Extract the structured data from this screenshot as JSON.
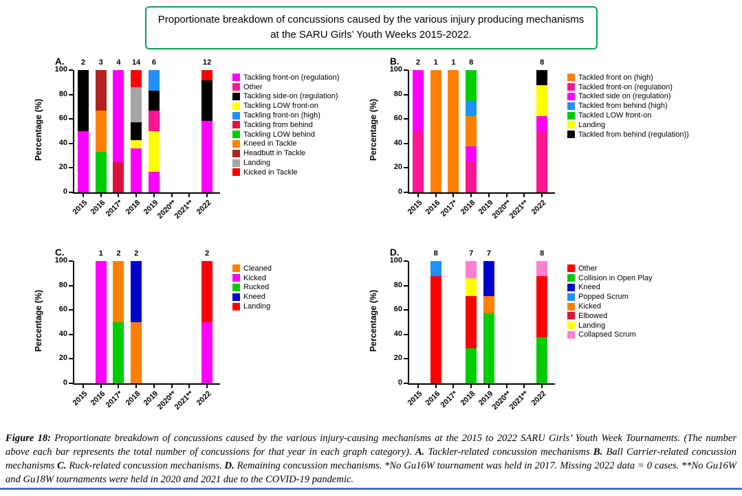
{
  "title_box": {
    "line1": "Proportionate breakdown of concussions caused by the various injury producing mechanisms",
    "line2": "at the SARU Girls’ Youth Weeks 2015-2022.",
    "border_color": "#00A550"
  },
  "divider_color": "#4472C4",
  "chart_data": [
    {
      "id": "A",
      "type": "stacked-bar",
      "panel_label": "A.",
      "ylabel": "Percentage (%)",
      "ylim": [
        0,
        100
      ],
      "yticks": [
        0,
        20,
        40,
        60,
        80,
        100
      ],
      "categories": [
        "2015",
        "2016",
        "2017*",
        "2018",
        "2019",
        "2020**",
        "2021**",
        "2022"
      ],
      "counts": [
        "2",
        "3",
        "4",
        "14",
        "6",
        "",
        "",
        "12"
      ],
      "legend": [
        {
          "label": "Tackling front-on (regulation)",
          "color": "#FF00FF"
        },
        {
          "label": "Other",
          "color": "#FF1493"
        },
        {
          "label": "Tackling side-on (regulation)",
          "color": "#000000"
        },
        {
          "label": "Tackling LOW front-on",
          "color": "#FFFF00"
        },
        {
          "label": "Tackling front-on (high)",
          "color": "#1E90FF"
        },
        {
          "label": "Tackling from behind",
          "color": "#DC143C"
        },
        {
          "label": "Tackling LOW behind",
          "color": "#00CC00"
        },
        {
          "label": "Kneed in Tackle",
          "color": "#FF8000"
        },
        {
          "label": "Headbutt in Tackle",
          "color": "#B22222"
        },
        {
          "label": "Landing",
          "color": "#A5A5A5"
        },
        {
          "label": "Kicked in Tackle",
          "color": "#FF0000"
        }
      ],
      "bars": {
        "2015": [
          {
            "label": "Tackling front-on (regulation)",
            "pct": 50
          },
          {
            "label": "Tackling side-on (regulation)",
            "pct": 50
          }
        ],
        "2016": [
          {
            "label": "Tackling LOW behind",
            "pct": 33.3
          },
          {
            "label": "Kneed in Tackle",
            "pct": 33.4
          },
          {
            "label": "Headbutt in Tackle",
            "pct": 33.3
          }
        ],
        "2017*": [
          {
            "label": "Tackling from behind",
            "pct": 25
          },
          {
            "label": "Tackling front-on (regulation)",
            "pct": 75
          }
        ],
        "2018": [
          {
            "label": "Tackling front-on (regulation)",
            "pct": 35.7
          },
          {
            "label": "Tackling LOW front-on",
            "pct": 7.1
          },
          {
            "label": "Tackling side-on (regulation)",
            "pct": 14.3
          },
          {
            "label": "Landing",
            "pct": 28.6
          },
          {
            "label": "Kicked in Tackle",
            "pct": 14.3
          }
        ],
        "2019": [
          {
            "label": "Tackling front-on (regulation)",
            "pct": 16.7
          },
          {
            "label": "Tackling LOW front-on",
            "pct": 33.3
          },
          {
            "label": "Other",
            "pct": 16.7
          },
          {
            "label": "Tackling side-on (regulation)",
            "pct": 16.6
          },
          {
            "label": "Tackling front-on (high)",
            "pct": 16.7
          }
        ],
        "2022": [
          {
            "label": "Tackling front-on (regulation)",
            "pct": 58.3
          },
          {
            "label": "Tackling side-on (regulation)",
            "pct": 33.4
          },
          {
            "label": "Kicked in Tackle",
            "pct": 8.3
          }
        ]
      }
    },
    {
      "id": "B",
      "type": "stacked-bar",
      "panel_label": "B.",
      "ylabel": "Percentage (%)",
      "ylim": [
        0,
        100
      ],
      "yticks": [
        0,
        20,
        40,
        60,
        80,
        100
      ],
      "categories": [
        "2015",
        "2016",
        "2017*",
        "2018",
        "2019",
        "2020**",
        "2021**",
        "2022"
      ],
      "counts": [
        "2",
        "1",
        "1",
        "8",
        "",
        "",
        "",
        "8"
      ],
      "legend": [
        {
          "label": "Tackled front on (high)",
          "color": "#FF8000"
        },
        {
          "label": "Tackled front-on (regulation)",
          "color": "#FF1493"
        },
        {
          "label": "Tackled side on (regulation)",
          "color": "#FF00FF"
        },
        {
          "label": "Tackled from behind (high)",
          "color": "#1E90FF"
        },
        {
          "label": "Tackled LOW front-on",
          "color": "#00CC00"
        },
        {
          "label": "Landing",
          "color": "#FFFF00"
        },
        {
          "label": "Tackled from behind (regulation))",
          "color": "#000000"
        }
      ],
      "bars": {
        "2015": [
          {
            "label": "Tackled front-on (regulation)",
            "pct": 50
          },
          {
            "label": "Tackled side on (regulation)",
            "pct": 50
          }
        ],
        "2016": [
          {
            "label": "Tackled front on (high)",
            "pct": 100
          }
        ],
        "2017*": [
          {
            "label": "Tackled front on (high)",
            "pct": 100
          }
        ],
        "2018": [
          {
            "label": "Tackled front-on (regulation)",
            "pct": 25
          },
          {
            "label": "Tackled side on (regulation)",
            "pct": 12.5
          },
          {
            "label": "Tackled front on (high)",
            "pct": 25
          },
          {
            "label": "Tackled from behind (high)",
            "pct": 12.5
          },
          {
            "label": "Tackled LOW front-on",
            "pct": 25
          }
        ],
        "2022": [
          {
            "label": "Tackled front-on (regulation)",
            "pct": 50
          },
          {
            "label": "Tackled side on (regulation)",
            "pct": 12.5
          },
          {
            "label": "Landing",
            "pct": 25
          },
          {
            "label": "Tackled from behind (regulation))",
            "pct": 12.5
          }
        ]
      }
    },
    {
      "id": "C",
      "type": "stacked-bar",
      "panel_label": "C.",
      "ylabel": "Percentage (%)",
      "ylim": [
        0,
        100
      ],
      "yticks": [
        0,
        20,
        40,
        60,
        80,
        100
      ],
      "categories": [
        "2015",
        "2016",
        "2017*",
        "2018",
        "2019",
        "2020**",
        "2021**",
        "2022"
      ],
      "counts": [
        "",
        "1",
        "2",
        "2",
        "",
        "",
        "",
        "2"
      ],
      "legend": [
        {
          "label": "Cleaned",
          "color": "#FF8000"
        },
        {
          "label": "Kicked",
          "color": "#FF00FF"
        },
        {
          "label": "Rucked",
          "color": "#00CC00"
        },
        {
          "label": "Kneed",
          "color": "#0000CD"
        },
        {
          "label": "Landing",
          "color": "#FF0000"
        }
      ],
      "bars": {
        "2016": [
          {
            "label": "Kicked",
            "pct": 100
          }
        ],
        "2017*": [
          {
            "label": "Rucked",
            "pct": 50
          },
          {
            "label": "Cleaned",
            "pct": 50
          }
        ],
        "2018": [
          {
            "label": "Cleaned",
            "pct": 50
          },
          {
            "label": "Kneed",
            "pct": 50
          }
        ],
        "2022": [
          {
            "label": "Kicked",
            "pct": 50
          },
          {
            "label": "Landing",
            "pct": 50
          }
        ]
      }
    },
    {
      "id": "D",
      "type": "stacked-bar",
      "panel_label": "D.",
      "ylabel": "Percentage (%)",
      "ylim": [
        0,
        100
      ],
      "yticks": [
        0,
        20,
        40,
        60,
        80,
        100
      ],
      "categories": [
        "2015",
        "2016",
        "2017*",
        "2018",
        "2019",
        "2020**",
        "2021**",
        "2022"
      ],
      "counts": [
        "",
        "8",
        "",
        "7",
        "7",
        "",
        "",
        "8"
      ],
      "legend": [
        {
          "label": "Other",
          "color": "#FF0000"
        },
        {
          "label": "Collision in Open Play",
          "color": "#00CC00"
        },
        {
          "label": "Kneed",
          "color": "#0000CD"
        },
        {
          "label": "Popped Scrum",
          "color": "#1E90FF"
        },
        {
          "label": "Kicked",
          "color": "#FF8000"
        },
        {
          "label": "Elbowed",
          "color": "#DC143C"
        },
        {
          "label": "Landing",
          "color": "#FFFF00"
        },
        {
          "label": "Collapsed Scrum",
          "color": "#FF7FD0"
        }
      ],
      "bars": {
        "2016": [
          {
            "label": "Other",
            "pct": 87.5
          },
          {
            "label": "Popped Scrum",
            "pct": 12.5
          }
        ],
        "2018": [
          {
            "label": "Collision in Open Play",
            "pct": 28.6
          },
          {
            "label": "Other",
            "pct": 42.8
          },
          {
            "label": "Landing",
            "pct": 14.3
          },
          {
            "label": "Collapsed Scrum",
            "pct": 14.3
          }
        ],
        "2019": [
          {
            "label": "Collision in Open Play",
            "pct": 57.1
          },
          {
            "label": "Kicked",
            "pct": 14.3
          },
          {
            "label": "Kneed",
            "pct": 28.6
          }
        ],
        "2022": [
          {
            "label": "Collision in Open Play",
            "pct": 37.5
          },
          {
            "label": "Other",
            "pct": 50
          },
          {
            "label": "Collapsed Scrum",
            "pct": 12.5
          }
        ]
      }
    }
  ],
  "caption": {
    "runs": [
      {
        "t": "Figure 18: ",
        "b": true
      },
      {
        "t": "Proportionate breakdown of concussions caused by the various injury-causing mechanisms at the 2015 to 2022 SARU Girls’ Youth Week Tournaments. (The number above each bar represents the total number of concussions for that year in each graph category). ",
        "b": false
      },
      {
        "t": "A. ",
        "b": true
      },
      {
        "t": "Tackler-related concussion mechanisms ",
        "b": false
      },
      {
        "t": "B. ",
        "b": true
      },
      {
        "t": "Ball Carrier-related concussion mechanisms ",
        "b": false
      },
      {
        "t": "C. ",
        "b": true
      },
      {
        "t": "Ruck-related concussion mechanisms. ",
        "b": false
      },
      {
        "t": "D. ",
        "b": true
      },
      {
        "t": "Remaining concussion mechanisms. *No Gu16W tournament was held in 2017. Missing 2022 data = 0 cases. **No Gu16W and Gu18W tournaments were held in 2020 and 2021 due to the COVID-19 pandemic.",
        "b": false
      }
    ]
  }
}
